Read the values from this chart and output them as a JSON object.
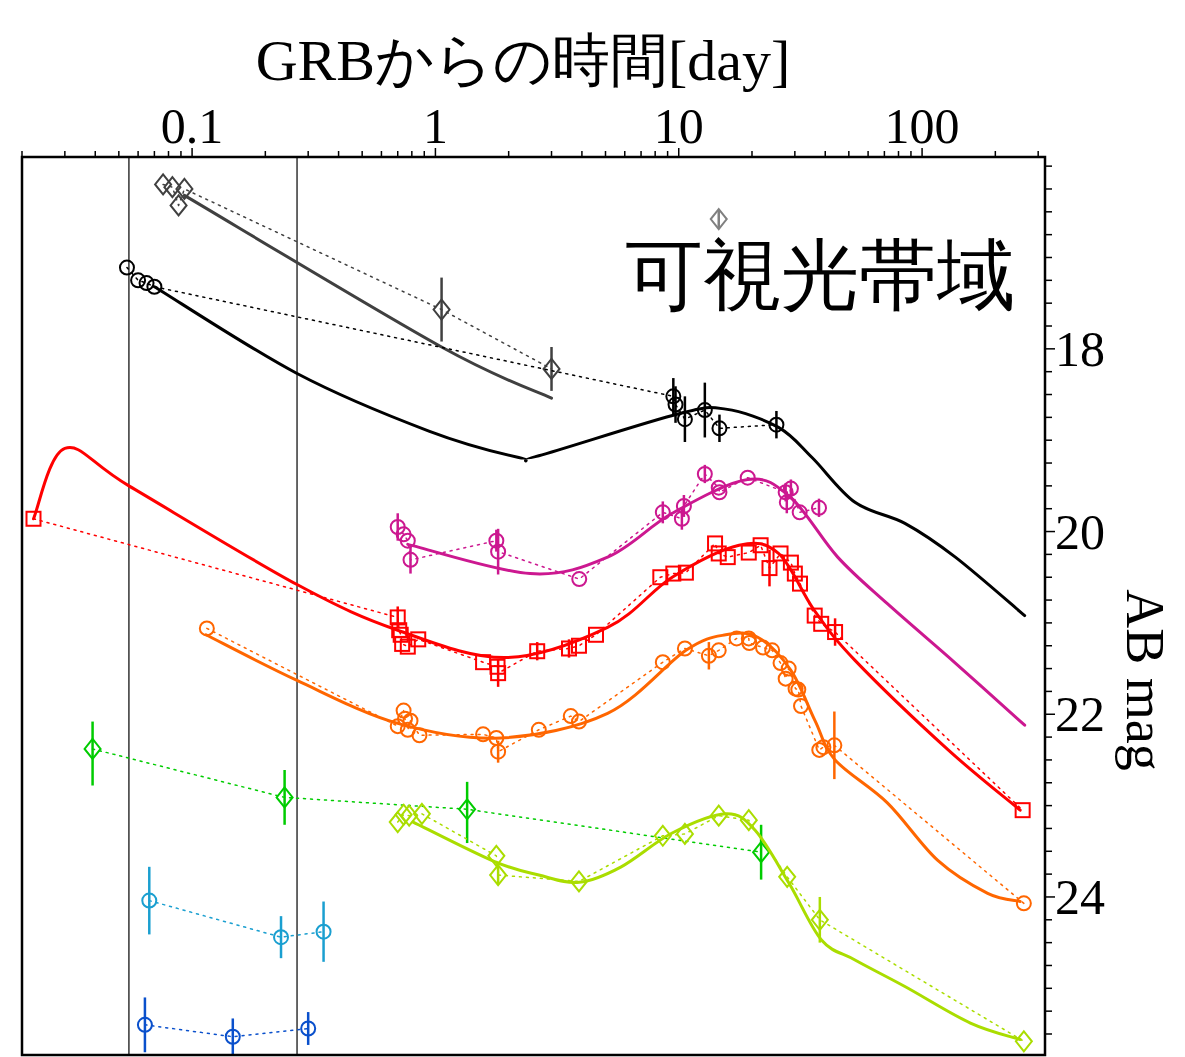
{
  "chart_data": {
    "type": "line",
    "xlabel": "GRBからの時間[day]",
    "ylabel": "AB mag",
    "annotations": [
      "可視光帯域"
    ],
    "log": "x",
    "grid": false,
    "xlim": [
      0.02,
      320
    ],
    "ylim": [
      25.73,
      15.9
    ],
    "xticks": [
      {
        "value": 0.02,
        "label": null
      },
      {
        "value": 0.03,
        "label": null
      },
      {
        "value": 0.04,
        "label": null
      },
      {
        "value": 0.05,
        "label": null
      },
      {
        "value": 0.06,
        "label": null
      },
      {
        "value": 0.07,
        "label": null
      },
      {
        "value": 0.08,
        "label": null
      },
      {
        "value": 0.09,
        "label": null
      },
      0.1,
      {
        "value": 0.2,
        "label": null
      },
      {
        "value": 0.3,
        "label": null
      },
      {
        "value": 0.4,
        "label": null
      },
      {
        "value": 0.5,
        "label": null
      },
      {
        "value": 0.6,
        "label": null
      },
      {
        "value": 0.7,
        "label": null
      },
      {
        "value": 0.8,
        "label": null
      },
      {
        "value": 0.9,
        "label": null
      },
      1,
      {
        "value": 2,
        "label": null
      },
      {
        "value": 3,
        "label": null
      },
      {
        "value": 4,
        "label": null
      },
      {
        "value": 5,
        "label": null
      },
      {
        "value": 6,
        "label": null
      },
      {
        "value": 7,
        "label": null
      },
      {
        "value": 8,
        "label": null
      },
      {
        "value": 9,
        "label": null
      },
      10,
      {
        "value": 20,
        "label": null
      },
      {
        "value": 30,
        "label": null
      },
      {
        "value": 40,
        "label": null
      },
      {
        "value": 50,
        "label": null
      },
      {
        "value": 60,
        "label": null
      },
      {
        "value": 70,
        "label": null
      },
      {
        "value": 80,
        "label": null
      },
      {
        "value": 90,
        "label": null
      },
      100,
      {
        "value": 200,
        "label": null
      },
      {
        "value": 300,
        "label": null
      }
    ],
    "yticks": [
      {
        "value": 16,
        "label": null
      },
      {
        "value": 16.25,
        "label": null
      },
      {
        "value": 16.5,
        "label": null
      },
      {
        "value": 16.75,
        "label": null
      },
      {
        "value": 17,
        "label": null
      },
      {
        "value": 17.25,
        "label": null
      },
      {
        "value": 17.5,
        "label": null
      },
      {
        "value": 17.75,
        "label": null
      },
      18,
      {
        "value": 18.25,
        "label": null
      },
      {
        "value": 18.5,
        "label": null
      },
      {
        "value": 18.75,
        "label": null
      },
      {
        "value": 19,
        "label": null
      },
      {
        "value": 19.25,
        "label": null
      },
      {
        "value": 19.5,
        "label": null
      },
      {
        "value": 19.75,
        "label": null
      },
      20,
      {
        "value": 20.25,
        "label": null
      },
      {
        "value": 20.5,
        "label": null
      },
      {
        "value": 20.75,
        "label": null
      },
      {
        "value": 21,
        "label": null
      },
      {
        "value": 21.25,
        "label": null
      },
      {
        "value": 21.5,
        "label": null
      },
      {
        "value": 21.75,
        "label": null
      },
      22,
      {
        "value": 22.25,
        "label": null
      },
      {
        "value": 22.5,
        "label": null
      },
      {
        "value": 22.75,
        "label": null
      },
      {
        "value": 23,
        "label": null
      },
      {
        "value": 23.25,
        "label": null
      },
      {
        "value": 23.5,
        "label": null
      },
      {
        "value": 23.75,
        "label": null
      },
      24,
      {
        "value": 24.25,
        "label": null
      },
      {
        "value": 24.5,
        "label": null
      },
      {
        "value": 24.75,
        "label": null
      },
      {
        "value": 25,
        "label": null
      },
      {
        "value": 25.25,
        "label": null
      },
      {
        "value": 25.5,
        "label": null
      }
    ],
    "ref_lines": [
      {
        "axis": "x",
        "value": 0.055,
        "color": "#404040"
      },
      {
        "axis": "x",
        "value": 0.27,
        "color": "#404040"
      }
    ],
    "series": [
      {
        "type": "line",
        "color": "#404040",
        "marker": "diamond",
        "line_style": "dotted",
        "x": [
          0.076,
          0.083,
          0.088,
          0.093,
          1.06,
          3.0
        ],
        "values": [
          16.2,
          16.23,
          16.43,
          16.25,
          17.57,
          18.22
        ],
        "errors": [
          null,
          null,
          null,
          null,
          0.35,
          0.24
        ]
      },
      {
        "type": "scatter",
        "color": "#808080",
        "marker": "diamond",
        "x": [
          14.6
        ],
        "values": [
          16.58
        ],
        "errors": [
          0.1
        ]
      },
      {
        "type": "line",
        "color": "#404040",
        "marker": "none",
        "line_style": "solid",
        "x": [
          0.093,
          1.06,
          3.0
        ],
        "values": [
          16.32,
          17.98,
          18.54
        ]
      },
      {
        "type": "line",
        "color": "#000000",
        "marker": "circle",
        "line_style": "dotted",
        "x": [
          0.054,
          0.06,
          0.065,
          0.07,
          9.5,
          9.7,
          10.6,
          12.8,
          14.7,
          25.2
        ],
        "values": [
          17.11,
          17.25,
          17.28,
          17.32,
          18.52,
          18.61,
          18.77,
          18.67,
          18.87,
          18.83
        ],
        "errors": [
          null,
          null,
          null,
          null,
          0.2,
          0.2,
          0.25,
          0.3,
          0.15,
          0.15
        ]
      },
      {
        "type": "line",
        "color": "#000000",
        "marker": "none",
        "line_style": "solid",
        "x": [
          0.07,
          0.27,
          0.94,
          2.2,
          2.66,
          10.0,
          15.6,
          25.7,
          35.3,
          53,
          85,
          137,
          264
        ],
        "values": [
          17.32,
          18.27,
          18.9,
          19.19,
          19.17,
          18.71,
          18.66,
          18.86,
          19.19,
          19.68,
          19.91,
          20.28,
          20.92
        ]
      },
      {
        "type": "line",
        "color": "#cc1890",
        "marker": "circle",
        "line_style": "dotted",
        "x": [
          0.7,
          0.74,
          0.77,
          0.79,
          1.78,
          1.81,
          3.9,
          8.6,
          10.3,
          10.5,
          12.8,
          14.6,
          14.7,
          19.2,
          27.5,
          27.8,
          28.9,
          31.4,
          37.7
        ],
        "values": [
          19.95,
          20.03,
          20.1,
          20.31,
          20.1,
          20.22,
          20.52,
          19.79,
          19.86,
          19.72,
          19.37,
          19.52,
          19.57,
          19.41,
          19.57,
          19.68,
          19.53,
          19.79,
          19.74
        ],
        "errors": [
          0.15,
          null,
          null,
          0.15,
          0.12,
          0.25,
          null,
          0.12,
          0.12,
          0.12,
          0.1,
          null,
          null,
          null,
          0.1,
          0.12,
          0.1,
          null,
          0.1
        ]
      },
      {
        "type": "line",
        "color": "#cc1890",
        "marker": "none",
        "line_style": "solid",
        "x": [
          0.77,
          2.45,
          5.1,
          9.4,
          19.2,
          28.9,
          45,
          72,
          137,
          264
        ],
        "values": [
          20.14,
          20.46,
          20.28,
          19.8,
          19.43,
          19.63,
          20.28,
          20.79,
          21.44,
          22.12
        ]
      },
      {
        "type": "line",
        "color": "#ff0000",
        "marker": "square",
        "line_style": "dotted",
        "x": [
          0.0223,
          0.7,
          0.71,
          0.72,
          0.73,
          0.77,
          0.85,
          1.57,
          1.8,
          1.81,
          2.62,
          3.54,
          3.89,
          4.57,
          8.4,
          9.5,
          10.7,
          14.1,
          14.6,
          15.9,
          19.4,
          21.7,
          23.6,
          26.2,
          28.9,
          30.0,
          31.5,
          36.2,
          38.5,
          43.9,
          259
        ],
        "values": [
          19.86,
          20.94,
          21.08,
          21.13,
          21.23,
          21.26,
          21.18,
          21.43,
          21.48,
          21.55,
          21.31,
          21.28,
          21.25,
          21.13,
          20.5,
          20.46,
          20.45,
          20.13,
          20.24,
          20.28,
          20.23,
          20.15,
          20.4,
          20.24,
          20.34,
          20.46,
          20.57,
          20.92,
          21.01,
          21.1,
          23.05
        ],
        "errors": [
          null,
          0.12,
          null,
          null,
          null,
          null,
          null,
          null,
          null,
          0.15,
          0.1,
          0.1,
          null,
          null,
          null,
          null,
          null,
          null,
          null,
          null,
          null,
          null,
          0.2,
          null,
          null,
          null,
          null,
          null,
          null,
          0.15,
          null
        ]
      },
      {
        "type": "line",
        "color": "#ff0000",
        "marker": "none",
        "line_style": "solid",
        "x": [
          0.0223,
          0.03,
          0.055,
          0.27,
          0.7,
          1.94,
          5.1,
          9.4,
          17.7,
          25.7,
          36,
          53,
          128,
          253
        ],
        "values": [
          19.86,
          19.09,
          19.5,
          20.58,
          21.08,
          21.38,
          21.05,
          20.5,
          20.15,
          20.24,
          20.86,
          21.41,
          22.39,
          23.05
        ]
      },
      {
        "type": "line",
        "color": "#ff6600",
        "marker": "circle",
        "line_style": "dotted",
        "x": [
          0.115,
          0.7,
          0.74,
          0.75,
          0.77,
          0.79,
          0.86,
          1.57,
          1.78,
          1.81,
          2.66,
          3.6,
          3.89,
          8.6,
          10.6,
          13.3,
          14.6,
          17.3,
          19.4,
          19.5,
          22.2,
          24.2,
          26.2,
          27.5,
          28.3,
          30.2,
          31.0,
          31.8,
          37.8,
          39.3,
          43.6,
          262
        ],
        "values": [
          21.06,
          22.13,
          21.96,
          22.05,
          22.17,
          22.07,
          22.23,
          22.22,
          22.26,
          22.41,
          22.17,
          22.02,
          22.08,
          21.43,
          21.28,
          21.36,
          21.3,
          21.17,
          21.17,
          21.22,
          21.27,
          21.3,
          21.44,
          21.61,
          21.5,
          21.72,
          21.73,
          21.91,
          22.39,
          22.36,
          22.34,
          24.07
        ],
        "errors": [
          null,
          null,
          null,
          null,
          null,
          null,
          null,
          null,
          null,
          0.12,
          null,
          null,
          null,
          null,
          null,
          0.15,
          null,
          null,
          null,
          null,
          null,
          null,
          null,
          null,
          null,
          null,
          null,
          null,
          null,
          null,
          0.37,
          null
        ]
      },
      {
        "type": "line",
        "color": "#ff6600",
        "marker": "none",
        "line_style": "solid",
        "x": [
          0.114,
          0.27,
          0.7,
          1.86,
          5.1,
          10.7,
          15.6,
          21.2,
          28.9,
          36.3,
          43.9,
          72,
          116,
          186,
          253
        ],
        "values": [
          21.13,
          21.63,
          22.1,
          22.26,
          21.99,
          21.3,
          21.13,
          21.16,
          21.52,
          22.07,
          22.5,
          22.97,
          23.6,
          23.96,
          24.05
        ]
      },
      {
        "type": "line",
        "color": "#00cc00",
        "marker": "diamond",
        "line_style": "dotted",
        "x": [
          0.039,
          0.24,
          1.35,
          21.8
        ],
        "values": [
          22.38,
          22.91,
          23.04,
          23.51
        ],
        "errors": [
          [
            22.08,
            22.78
          ],
          0.3,
          [
            22.74,
            23.41
          ],
          0.3
        ]
      },
      {
        "type": "line",
        "color": "#aadd00",
        "marker": "diamond",
        "line_style": "dotted",
        "x": [
          0.7,
          0.74,
          0.78,
          0.88,
          1.78,
          1.81,
          3.89,
          8.6,
          10.6,
          14.6,
          19.4,
          27.9,
          38,
          262
        ],
        "values": [
          23.18,
          23.1,
          23.11,
          23.09,
          23.55,
          23.76,
          23.83,
          23.33,
          23.31,
          23.11,
          23.16,
          23.78,
          24.25,
          25.58
        ],
        "errors": [
          null,
          null,
          null,
          null,
          null,
          0.1,
          null,
          null,
          null,
          null,
          null,
          null,
          0.25,
          null
        ]
      },
      {
        "type": "line",
        "color": "#aadd00",
        "marker": "none",
        "line_style": "solid",
        "x": [
          0.81,
          1.74,
          2.66,
          3.9,
          5.8,
          9.4,
          15.6,
          20.6,
          28.4,
          38.6,
          53,
          85,
          158,
          253
        ],
        "values": [
          23.18,
          23.61,
          23.76,
          23.84,
          23.67,
          23.3,
          23.09,
          23.27,
          23.85,
          24.47,
          24.69,
          24.98,
          25.38,
          25.56
        ]
      },
      {
        "type": "line",
        "color": "#1a9fd0",
        "marker": "circle",
        "line_style": "dotted",
        "x": [
          0.0667,
          0.232,
          0.347
        ],
        "values": [
          24.04,
          24.44,
          24.38
        ],
        "errors": [
          0.37,
          0.23,
          0.33
        ]
      },
      {
        "type": "line",
        "color": "#0a50cc",
        "marker": "circle",
        "line_style": "dotted",
        "x": [
          0.064,
          0.147,
          0.3
        ],
        "values": [
          25.4,
          25.53,
          25.44
        ],
        "errors": [
          0.3,
          0.2,
          0.18
        ]
      }
    ]
  }
}
